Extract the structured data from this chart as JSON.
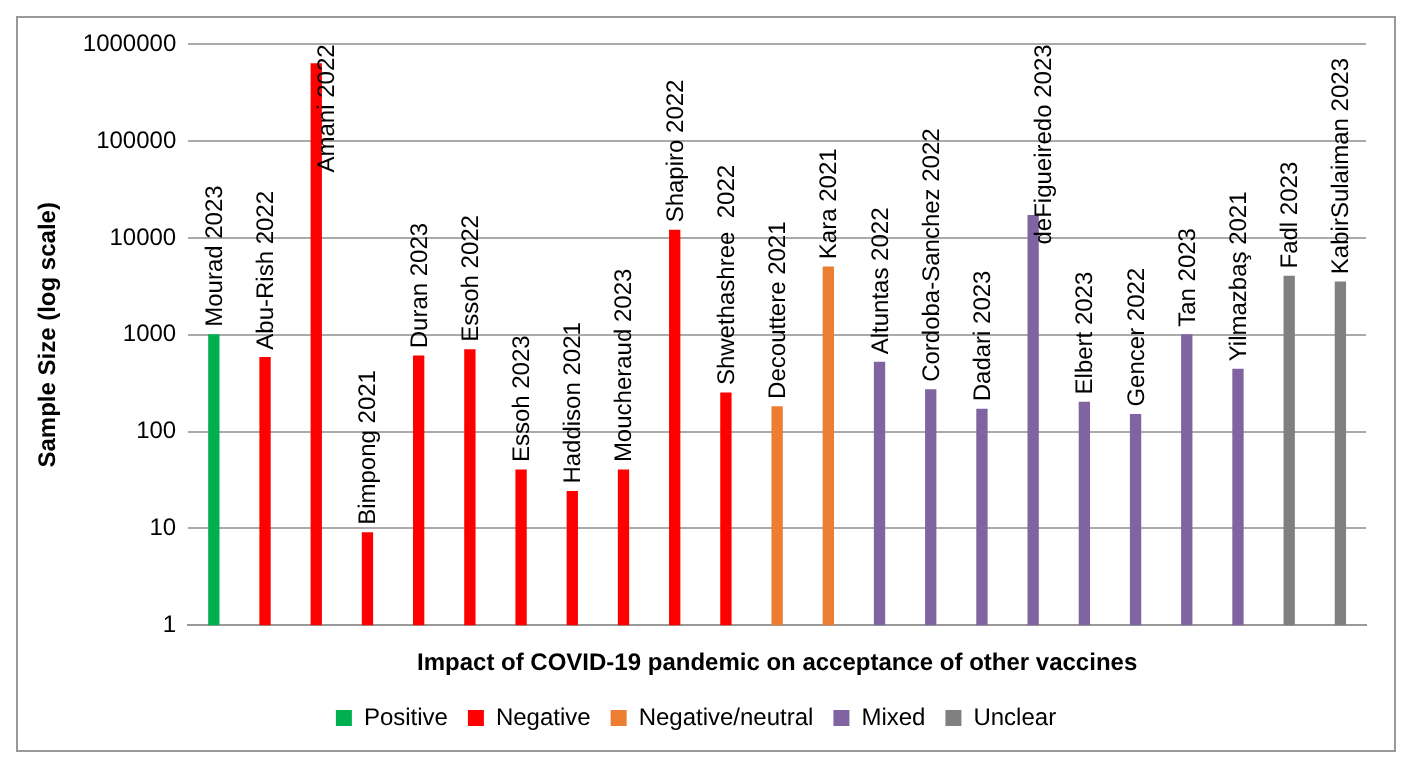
{
  "chart_data": {
    "type": "bar",
    "xlabel": "Impact of COVID-19 pandemic on acceptance of other vaccines",
    "ylabel": "Sample Size (log scale)",
    "categories": [
      "Mourad 2023",
      "Abu-Rish 2022",
      "Amani 2022",
      "Bimpong 2021",
      "Duran 2023",
      "Essoh 2022",
      "Essoh 2023",
      "Haddison 2021",
      "Moucheraud 2023",
      "Shapiro 2022",
      "Shwethashree  2022",
      "Decouttere 2021",
      "Kara 2021",
      "Altuntas 2022",
      "Cordoba-Sanchez 2022",
      "Dadari 2023",
      "deFigueiredo 2023",
      "Elbert 2023",
      "Gencer 2022",
      "Tan 2023",
      "Yilmazbaş 2021",
      "Fadl 2023",
      "KabirSulaiman 2023"
    ],
    "series": [
      {
        "name": "Positive",
        "color": "#00b050",
        "values": [
          1000,
          null,
          null,
          null,
          null,
          null,
          null,
          null,
          null,
          null,
          null,
          null,
          null,
          null,
          null,
          null,
          null,
          null,
          null,
          null,
          null,
          null,
          null
        ]
      },
      {
        "name": "Negative",
        "color": "#ff0000",
        "values": [
          null,
          580,
          630000,
          9,
          600,
          700,
          40,
          24,
          40,
          12000,
          250,
          null,
          null,
          null,
          null,
          null,
          null,
          null,
          null,
          null,
          null,
          null,
          null
        ]
      },
      {
        "name": "Negative/neutral",
        "color": "#ed7d31",
        "values": [
          null,
          null,
          null,
          null,
          null,
          null,
          null,
          null,
          null,
          null,
          null,
          180,
          5000,
          null,
          null,
          null,
          null,
          null,
          null,
          null,
          null,
          null,
          null
        ]
      },
      {
        "name": "Mixed",
        "color": "#8064a2",
        "values": [
          null,
          null,
          null,
          null,
          null,
          null,
          null,
          null,
          null,
          null,
          null,
          null,
          null,
          520,
          270,
          170,
          17000,
          200,
          150,
          1000,
          440,
          null,
          null
        ]
      },
      {
        "name": "Unclear",
        "color": "#808080",
        "values": [
          null,
          null,
          null,
          null,
          null,
          null,
          null,
          null,
          null,
          null,
          null,
          null,
          null,
          null,
          null,
          null,
          null,
          null,
          null,
          null,
          null,
          4000,
          3500
        ]
      }
    ],
    "log": "y",
    "ylim": [
      1,
      1000000
    ],
    "yticks": [
      1,
      10,
      100,
      1000,
      10000,
      100000,
      1000000
    ],
    "grid": "y",
    "legend": "bottom"
  }
}
